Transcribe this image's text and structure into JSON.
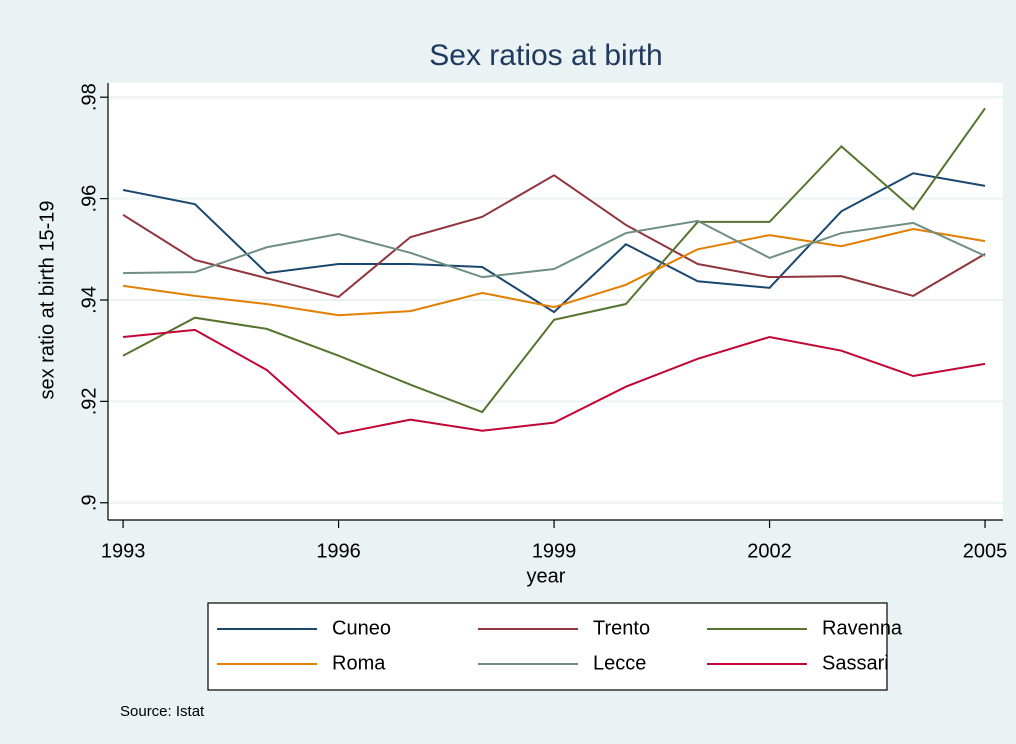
{
  "chart_data": {
    "type": "line",
    "title": "Sex ratios at birth",
    "x_label": "year",
    "y_label": "sex ratio at birth 15-19",
    "note": "Source: Istat",
    "x": [
      1993,
      1994,
      1995,
      1996,
      1997,
      1998,
      1999,
      2000,
      2001,
      2002,
      2003,
      2004,
      2005
    ],
    "xlim": [
      1992.79,
      2005.25
    ],
    "xticks": [
      1993,
      1996,
      1999,
      2002,
      2005
    ],
    "ylim": [
      0.8966,
      0.9828
    ],
    "yticks": [
      {
        "value": 0.9,
        "label": ".9"
      },
      {
        "value": 0.92,
        "label": ".92"
      },
      {
        "value": 0.94,
        "label": ".94"
      },
      {
        "value": 0.96,
        "label": ".96"
      },
      {
        "value": 0.98,
        "label": ".98"
      }
    ],
    "grid": true,
    "legend": "bottom",
    "series": [
      {
        "name": "Cuneo",
        "color": "#1a476f",
        "values": [
          0.9617,
          0.9589,
          0.9453,
          0.9471,
          0.9471,
          0.9465,
          0.9376,
          0.951,
          0.9437,
          0.9424,
          0.9575,
          0.965,
          0.9625
        ]
      },
      {
        "name": "Trento",
        "color": "#90353b",
        "values": [
          0.9568,
          0.9479,
          0.9443,
          0.9406,
          0.9524,
          0.9564,
          0.9646,
          0.9548,
          0.9471,
          0.9445,
          0.9447,
          0.9408,
          0.9491
        ]
      },
      {
        "name": "Ravenna",
        "color": "#55752f",
        "values": [
          0.929,
          0.9365,
          0.9343,
          0.929,
          0.9233,
          0.9179,
          0.9361,
          0.9392,
          0.9554,
          0.9554,
          0.9703,
          0.9579,
          0.9778
        ]
      },
      {
        "name": "Roma",
        "color": "#e37e00",
        "values": [
          0.9428,
          0.9408,
          0.9392,
          0.937,
          0.9378,
          0.9414,
          0.9386,
          0.943,
          0.95,
          0.9528,
          0.9506,
          0.954,
          0.9516
        ]
      },
      {
        "name": "Lecce",
        "color": "#6e8e84",
        "values": [
          0.9453,
          0.9455,
          0.9504,
          0.953,
          0.9493,
          0.9445,
          0.9461,
          0.9532,
          0.9556,
          0.9483,
          0.9532,
          0.9552,
          0.9487
        ]
      },
      {
        "name": "Sassari",
        "color": "#c10534",
        "values": [
          0.9327,
          0.9341,
          0.9262,
          0.9136,
          0.9164,
          0.9142,
          0.9158,
          0.9229,
          0.9284,
          0.9327,
          0.93,
          0.925,
          0.9274
        ]
      }
    ]
  }
}
